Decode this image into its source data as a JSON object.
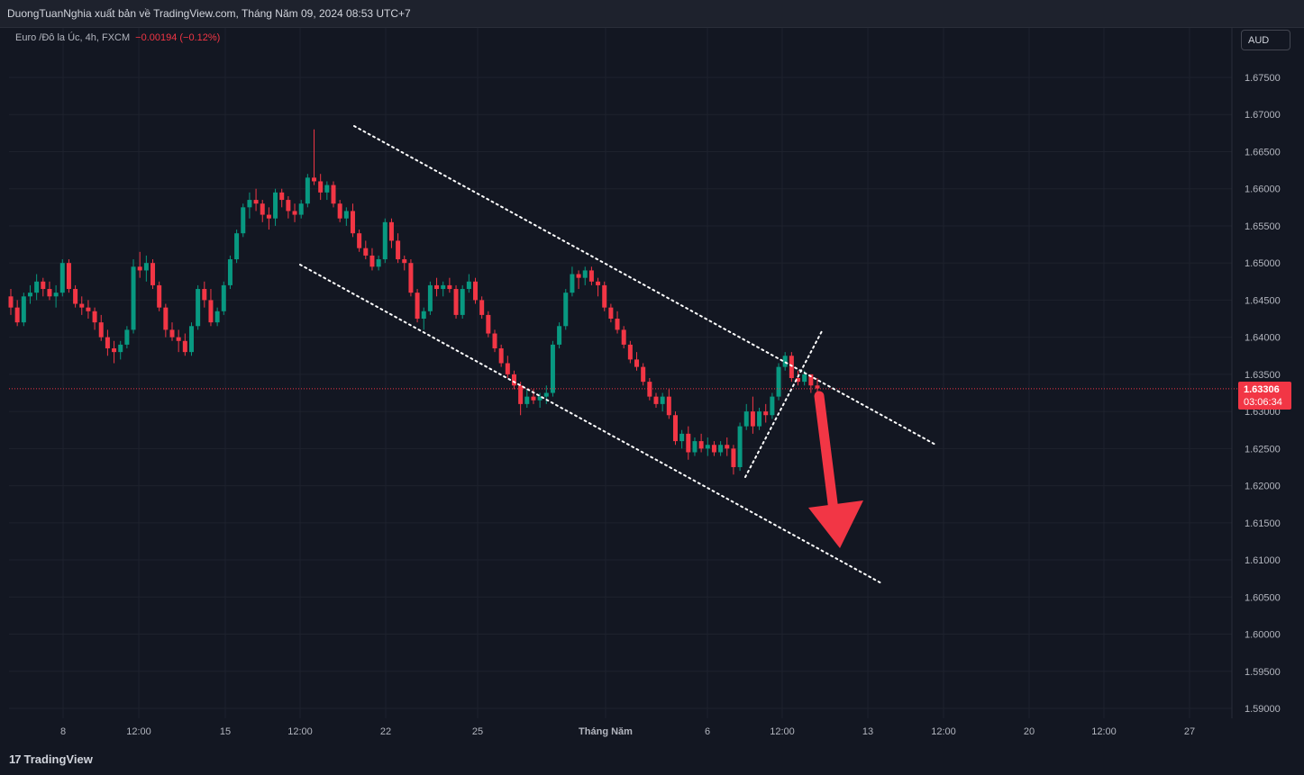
{
  "header": {
    "publisher_text": "DuongTuanNghia xuất bản về TradingView.com, Tháng Năm 09, 2024 08:53 UTC+7"
  },
  "legend": {
    "symbol": "Euro /Đô la Úc, 4h, FXCM",
    "change": "−0.00194 (−0.12%)"
  },
  "currency_button": "AUD",
  "last_price": {
    "price": "1.63306",
    "countdown": "03:06:34",
    "color": "#f23645"
  },
  "logo": {
    "mark": "17",
    "text": "TradingView"
  },
  "colors": {
    "background": "#131722",
    "up": "#089981",
    "down": "#f23645",
    "grid": "#1e222d",
    "annotation": "#ffffff",
    "arrow": "#f23645"
  },
  "chart_data": {
    "type": "candlestick",
    "symbol": "EURAUD",
    "timeframe": "4h",
    "ylim": [
      1.585,
      1.6785
    ],
    "y_ticks": [
      "1.67500",
      "1.67000",
      "1.66500",
      "1.66000",
      "1.65500",
      "1.65000",
      "1.64500",
      "1.64000",
      "1.63500",
      "1.63000",
      "1.62500",
      "1.62000",
      "1.61500",
      "1.61000",
      "1.60500",
      "1.60000",
      "1.59500",
      "1.59000"
    ],
    "x_ticks": [
      "8",
      "12:00",
      "15",
      "12:00",
      "22",
      "25",
      "Tháng Năm",
      "6",
      "12:00",
      "13",
      "12:00",
      "20",
      "12:00",
      "27"
    ],
    "grid": true,
    "candles_ohlc": [
      [
        1.6455,
        1.6465,
        1.643,
        1.644
      ],
      [
        1.644,
        1.645,
        1.6415,
        1.642
      ],
      [
        1.642,
        1.646,
        1.6415,
        1.6455
      ],
      [
        1.6455,
        1.647,
        1.6445,
        1.646
      ],
      [
        1.646,
        1.6485,
        1.645,
        1.6475
      ],
      [
        1.6475,
        1.648,
        1.6455,
        1.6465
      ],
      [
        1.6465,
        1.6475,
        1.645,
        1.6455
      ],
      [
        1.6455,
        1.647,
        1.644,
        1.646
      ],
      [
        1.646,
        1.6505,
        1.6455,
        1.65
      ],
      [
        1.65,
        1.6505,
        1.646,
        1.6465
      ],
      [
        1.6465,
        1.647,
        1.644,
        1.6445
      ],
      [
        1.6445,
        1.6455,
        1.643,
        1.644
      ],
      [
        1.644,
        1.645,
        1.6425,
        1.6435
      ],
      [
        1.6435,
        1.644,
        1.641,
        1.642
      ],
      [
        1.642,
        1.643,
        1.6395,
        1.64
      ],
      [
        1.64,
        1.641,
        1.6375,
        1.6385
      ],
      [
        1.6385,
        1.6395,
        1.6365,
        1.638
      ],
      [
        1.638,
        1.6395,
        1.637,
        1.639
      ],
      [
        1.639,
        1.6415,
        1.6385,
        1.641
      ],
      [
        1.641,
        1.6505,
        1.6405,
        1.6495
      ],
      [
        1.6495,
        1.6515,
        1.648,
        1.649
      ],
      [
        1.649,
        1.651,
        1.6475,
        1.65
      ],
      [
        1.65,
        1.6505,
        1.6465,
        1.647
      ],
      [
        1.647,
        1.6475,
        1.6435,
        1.644
      ],
      [
        1.644,
        1.6445,
        1.64,
        1.641
      ],
      [
        1.641,
        1.642,
        1.6395,
        1.64
      ],
      [
        1.64,
        1.641,
        1.638,
        1.6395
      ],
      [
        1.6395,
        1.6405,
        1.6375,
        1.638
      ],
      [
        1.638,
        1.642,
        1.6375,
        1.6415
      ],
      [
        1.6415,
        1.647,
        1.641,
        1.6465
      ],
      [
        1.6465,
        1.6475,
        1.644,
        1.645
      ],
      [
        1.645,
        1.6465,
        1.6415,
        1.642
      ],
      [
        1.642,
        1.644,
        1.6415,
        1.6435
      ],
      [
        1.6435,
        1.6475,
        1.643,
        1.647
      ],
      [
        1.647,
        1.651,
        1.6465,
        1.6505
      ],
      [
        1.6505,
        1.6545,
        1.65,
        1.654
      ],
      [
        1.654,
        1.658,
        1.6535,
        1.6575
      ],
      [
        1.6575,
        1.6595,
        1.656,
        1.6585
      ],
      [
        1.6585,
        1.66,
        1.657,
        1.658
      ],
      [
        1.658,
        1.6585,
        1.6555,
        1.6565
      ],
      [
        1.6565,
        1.6575,
        1.6545,
        1.656
      ],
      [
        1.656,
        1.66,
        1.655,
        1.6595
      ],
      [
        1.6595,
        1.66,
        1.6575,
        1.6585
      ],
      [
        1.6585,
        1.659,
        1.656,
        1.657
      ],
      [
        1.657,
        1.658,
        1.6555,
        1.6565
      ],
      [
        1.6565,
        1.6585,
        1.656,
        1.658
      ],
      [
        1.658,
        1.662,
        1.6575,
        1.6615
      ],
      [
        1.6615,
        1.668,
        1.6605,
        1.661
      ],
      [
        1.661,
        1.662,
        1.6585,
        1.6595
      ],
      [
        1.6595,
        1.661,
        1.6585,
        1.6605
      ],
      [
        1.6605,
        1.661,
        1.6575,
        1.658
      ],
      [
        1.658,
        1.6585,
        1.6555,
        1.656
      ],
      [
        1.656,
        1.6575,
        1.655,
        1.657
      ],
      [
        1.657,
        1.658,
        1.6535,
        1.654
      ],
      [
        1.654,
        1.6545,
        1.6515,
        1.652
      ],
      [
        1.652,
        1.653,
        1.6505,
        1.651
      ],
      [
        1.651,
        1.652,
        1.649,
        1.6495
      ],
      [
        1.6495,
        1.651,
        1.649,
        1.6505
      ],
      [
        1.6505,
        1.656,
        1.65,
        1.6555
      ],
      [
        1.6555,
        1.656,
        1.652,
        1.653
      ],
      [
        1.653,
        1.654,
        1.65,
        1.6505
      ],
      [
        1.6505,
        1.651,
        1.649,
        1.65
      ],
      [
        1.65,
        1.6505,
        1.6455,
        1.646
      ],
      [
        1.646,
        1.6465,
        1.642,
        1.6425
      ],
      [
        1.6425,
        1.644,
        1.641,
        1.6435
      ],
      [
        1.6435,
        1.6475,
        1.643,
        1.647
      ],
      [
        1.647,
        1.648,
        1.6455,
        1.6465
      ],
      [
        1.6465,
        1.6475,
        1.6455,
        1.647
      ],
      [
        1.647,
        1.648,
        1.646,
        1.6465
      ],
      [
        1.6465,
        1.647,
        1.6425,
        1.643
      ],
      [
        1.643,
        1.647,
        1.6425,
        1.6465
      ],
      [
        1.6465,
        1.6485,
        1.646,
        1.6475
      ],
      [
        1.6475,
        1.648,
        1.6445,
        1.645
      ],
      [
        1.645,
        1.6455,
        1.6425,
        1.643
      ],
      [
        1.643,
        1.6435,
        1.64,
        1.6405
      ],
      [
        1.6405,
        1.641,
        1.638,
        1.6385
      ],
      [
        1.6385,
        1.639,
        1.636,
        1.6365
      ],
      [
        1.6365,
        1.6375,
        1.6345,
        1.635
      ],
      [
        1.635,
        1.6355,
        1.633,
        1.6335
      ],
      [
        1.6335,
        1.634,
        1.6295,
        1.631
      ],
      [
        1.631,
        1.633,
        1.6305,
        1.632
      ],
      [
        1.632,
        1.633,
        1.631,
        1.6315
      ],
      [
        1.6315,
        1.6325,
        1.6305,
        1.632
      ],
      [
        1.632,
        1.6335,
        1.631,
        1.6325
      ],
      [
        1.6325,
        1.6395,
        1.632,
        1.639
      ],
      [
        1.639,
        1.642,
        1.6385,
        1.6415
      ],
      [
        1.6415,
        1.6465,
        1.641,
        1.646
      ],
      [
        1.646,
        1.6495,
        1.6455,
        1.6485
      ],
      [
        1.6485,
        1.649,
        1.6465,
        1.648
      ],
      [
        1.648,
        1.6495,
        1.647,
        1.649
      ],
      [
        1.649,
        1.6495,
        1.647,
        1.6475
      ],
      [
        1.6475,
        1.648,
        1.6455,
        1.647
      ],
      [
        1.647,
        1.6475,
        1.6435,
        1.644
      ],
      [
        1.644,
        1.6445,
        1.642,
        1.6425
      ],
      [
        1.6425,
        1.6435,
        1.6405,
        1.641
      ],
      [
        1.641,
        1.6415,
        1.6385,
        1.639
      ],
      [
        1.639,
        1.6395,
        1.6365,
        1.637
      ],
      [
        1.637,
        1.638,
        1.6355,
        1.636
      ],
      [
        1.636,
        1.6365,
        1.6335,
        1.634
      ],
      [
        1.634,
        1.6345,
        1.6315,
        1.632
      ],
      [
        1.632,
        1.6325,
        1.6305,
        1.631
      ],
      [
        1.631,
        1.6325,
        1.63,
        1.632
      ],
      [
        1.632,
        1.633,
        1.629,
        1.6295
      ],
      [
        1.6295,
        1.63,
        1.6255,
        1.626
      ],
      [
        1.626,
        1.6275,
        1.625,
        1.627
      ],
      [
        1.627,
        1.628,
        1.6235,
        1.6245
      ],
      [
        1.6245,
        1.6265,
        1.624,
        1.626
      ],
      [
        1.626,
        1.627,
        1.6245,
        1.625
      ],
      [
        1.625,
        1.6265,
        1.624,
        1.6255
      ],
      [
        1.6255,
        1.626,
        1.624,
        1.6245
      ],
      [
        1.6245,
        1.626,
        1.624,
        1.6255
      ],
      [
        1.6255,
        1.6265,
        1.624,
        1.625
      ],
      [
        1.625,
        1.6255,
        1.6215,
        1.6225
      ],
      [
        1.6225,
        1.6285,
        1.622,
        1.628
      ],
      [
        1.628,
        1.631,
        1.6275,
        1.63
      ],
      [
        1.63,
        1.632,
        1.627,
        1.628
      ],
      [
        1.628,
        1.6305,
        1.6275,
        1.63
      ],
      [
        1.63,
        1.631,
        1.6285,
        1.6295
      ],
      [
        1.6295,
        1.6325,
        1.629,
        1.632
      ],
      [
        1.632,
        1.6365,
        1.6315,
        1.636
      ],
      [
        1.636,
        1.638,
        1.6355,
        1.6375
      ],
      [
        1.6375,
        1.638,
        1.634,
        1.6345
      ],
      [
        1.6345,
        1.6355,
        1.6335,
        1.634
      ],
      [
        1.634,
        1.6355,
        1.6335,
        1.635
      ],
      [
        1.635,
        1.635,
        1.6325,
        1.6335
      ],
      [
        1.6335,
        1.6345,
        1.6325,
        1.6331
      ]
    ]
  }
}
